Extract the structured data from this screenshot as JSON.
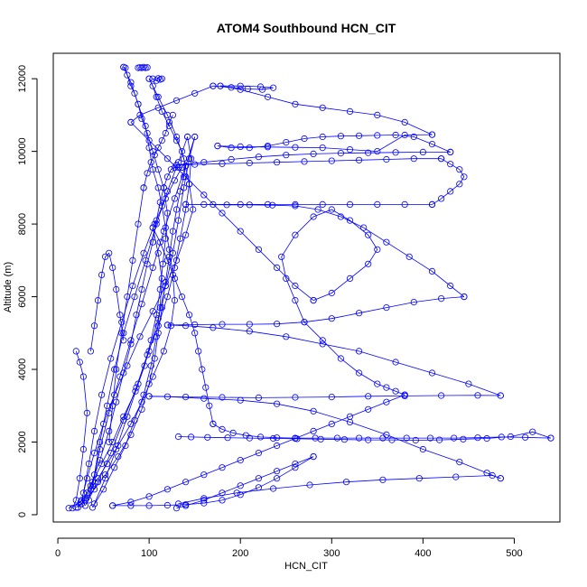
{
  "chart_data": {
    "type": "scatter",
    "title": "ATOM4 Southbound HCN_CIT",
    "xlabel": "HCN_CIT",
    "ylabel": "Altitude (m)",
    "xlim": [
      -5,
      550
    ],
    "ylim": [
      -200,
      12700
    ],
    "x_ticks": [
      0,
      100,
      200,
      300,
      400,
      500
    ],
    "y_ticks": [
      0,
      2000,
      4000,
      6000,
      8000,
      10000,
      12000
    ],
    "grid": false,
    "legend": "none",
    "colors": {
      "series": "#0000ff",
      "axis": "#000000"
    },
    "series": [
      {
        "x": [
          12,
          25,
          32,
          38,
          48,
          60,
          72,
          85,
          95,
          102,
          108,
          112,
          115,
          118,
          120,
          116,
          110,
          104,
          98,
          92,
          88,
          84,
          80,
          76,
          74,
          72
        ],
        "y": [
          180,
          350,
          600,
          900,
          1400,
          2000,
          2700,
          3400,
          4100,
          4800,
          5500,
          6200,
          6900,
          7600,
          8300,
          9000,
          9500,
          10000,
          10500,
          10900,
          11300,
          11600,
          11800,
          12100,
          12300,
          12320
        ]
      },
      {
        "x": [
          72,
          80,
          88,
          96,
          100,
          104,
          110,
          114,
          118,
          122,
          126,
          128,
          124,
          116,
          104,
          92,
          80,
          66,
          54,
          44,
          36,
          30,
          26,
          22
        ],
        "y": [
          12320,
          11900,
          11300,
          10700,
          10100,
          9500,
          9000,
          8500,
          7900,
          7300,
          6600,
          5900,
          5200,
          4500,
          3800,
          3100,
          2500,
          1900,
          1400,
          1000,
          700,
          450,
          300,
          200
        ]
      },
      {
        "x": [
          20,
          30,
          40,
          52,
          66,
          80,
          92,
          100,
          106,
          110,
          114,
          118,
          122,
          126,
          130,
          134,
          138,
          140,
          136,
          130,
          122,
          114,
          108,
          104,
          100
        ],
        "y": [
          200,
          400,
          700,
          1100,
          1600,
          2200,
          2900,
          3600,
          4300,
          5000,
          5700,
          6400,
          7100,
          7800,
          8400,
          8900,
          9300,
          9600,
          10000,
          10300,
          10700,
          11100,
          11500,
          11800,
          12000
        ]
      },
      {
        "x": [
          100,
          110,
          120,
          130,
          138,
          144,
          148,
          140,
          130,
          118,
          104,
          90,
          76,
          62,
          50,
          40,
          32,
          26
        ],
        "y": [
          12000,
          11500,
          11000,
          10400,
          9800,
          9100,
          8400,
          7700,
          7000,
          6300,
          5600,
          4900,
          4100,
          3300,
          2500,
          1700,
          1000,
          400
        ]
      },
      {
        "x": [
          26,
          36,
          46,
          56,
          64,
          72,
          80,
          86,
          92,
          98,
          104,
          108,
          112,
          116,
          120,
          124,
          128,
          132,
          136
        ],
        "y": [
          300,
          800,
          1500,
          2300,
          3100,
          3900,
          4700,
          5500,
          6200,
          6900,
          7500,
          8100,
          8600,
          9000,
          9300,
          9500,
          9550,
          9560,
          9560
        ]
      },
      {
        "x": [
          136,
          128,
          118,
          106,
          94,
          82,
          70,
          58,
          48,
          40,
          34,
          28
        ],
        "y": [
          9560,
          9200,
          8700,
          8000,
          7200,
          6300,
          5300,
          4300,
          3300,
          2300,
          1400,
          600
        ]
      },
      {
        "x": [
          30,
          44,
          58,
          72,
          86,
          98,
          110,
          120,
          128,
          134,
          140,
          144,
          146,
          142
        ],
        "y": [
          250,
          900,
          1700,
          2600,
          3500,
          4400,
          5200,
          6000,
          6800,
          7600,
          8400,
          9100,
          9800,
          10400
        ]
      },
      {
        "x": [
          142,
          132,
          120,
          108,
          96,
          84,
          72,
          62,
          54,
          46,
          40,
          34
        ],
        "y": [
          10400,
          9700,
          8900,
          8000,
          7000,
          6000,
          5000,
          4000,
          3000,
          2000,
          1100,
          400
        ]
      },
      {
        "x": [
          40,
          52,
          64,
          76,
          88,
          100,
          110,
          118,
          126,
          132,
          138,
          144,
          150
        ],
        "y": [
          300,
          1000,
          1800,
          2700,
          3600,
          4500,
          5400,
          6300,
          7200,
          8100,
          9000,
          9800,
          10400
        ]
      },
      {
        "x": [
          150,
          140,
          128,
          116,
          104,
          92,
          80,
          68,
          56,
          46,
          38
        ],
        "y": [
          10400,
          9600,
          8700,
          7800,
          6800,
          5800,
          4800,
          3800,
          2800,
          1800,
          800
        ]
      },
      {
        "x": [
          38,
          50,
          62,
          74,
          84,
          94,
          102,
          108,
          112,
          114,
          110,
          104
        ],
        "y": [
          200,
          700,
          1300,
          1900,
          2600,
          3300,
          4100,
          4900,
          5700,
          6500,
          7200,
          7900
        ]
      },
      {
        "x": [
          104,
          112,
          120,
          128,
          136,
          144,
          150,
          154,
          158,
          162,
          166,
          170
        ],
        "y": [
          7900,
          7500,
          7000,
          6500,
          6000,
          5500,
          5000,
          4500,
          4000,
          3500,
          3000,
          2500
        ]
      },
      {
        "x": [
          170,
          180,
          192,
          206,
          222,
          240,
          260,
          282,
          306,
          330,
          356,
          382,
          408,
          434,
          460,
          486,
          512,
          540
        ],
        "y": [
          2500,
          2350,
          2250,
          2180,
          2140,
          2120,
          2110,
          2110,
          2110,
          2110,
          2110,
          2110,
          2110,
          2110,
          2120,
          2140,
          2130,
          2110
        ]
      },
      {
        "x": [
          540,
          520,
          496,
          470,
          444,
          418,
          392,
          366,
          340,
          314,
          288,
          262,
          236,
          210,
          186,
          164,
          146,
          132
        ],
        "y": [
          2110,
          2280,
          2150,
          2100,
          2080,
          2060,
          2050,
          2060,
          2060,
          2070,
          2080,
          2090,
          2100,
          2110,
          2120,
          2130,
          2140,
          2150
        ]
      },
      {
        "x": [
          132,
          160,
          196,
          236,
          276,
          316,
          356,
          396,
          436,
          476,
          485
        ],
        "y": [
          300,
          450,
          600,
          720,
          820,
          900,
          960,
          1000,
          1040,
          1080,
          1000
        ]
      },
      {
        "x": [
          485,
          470,
          440,
          400,
          360,
          320,
          280,
          240,
          200,
          160,
          120,
          100
        ],
        "y": [
          1000,
          1150,
          1450,
          1800,
          2200,
          2550,
          2850,
          3050,
          3150,
          3200,
          3250,
          3260
        ]
      },
      {
        "x": [
          100,
          140,
          180,
          220,
          260,
          300,
          340,
          380,
          420,
          460,
          485
        ],
        "y": [
          3260,
          3240,
          3230,
          3220,
          3230,
          3240,
          3260,
          3270,
          3280,
          3285,
          3280
        ]
      },
      {
        "x": [
          485,
          450,
          410,
          370,
          330,
          290,
          250,
          210,
          170,
          140,
          120
        ],
        "y": [
          3280,
          3600,
          3900,
          4200,
          4500,
          4700,
          4900,
          5050,
          5150,
          5200,
          5220
        ]
      },
      {
        "x": [
          120,
          150,
          180,
          210,
          240,
          270,
          300,
          330,
          360,
          390,
          420,
          445
        ],
        "y": [
          5220,
          5230,
          5240,
          5240,
          5250,
          5300,
          5400,
          5550,
          5700,
          5850,
          5950,
          6000
        ]
      },
      {
        "x": [
          445,
          430,
          410,
          385,
          360,
          335,
          310,
          285,
          260,
          235,
          210,
          185,
          160,
          140
        ],
        "y": [
          6000,
          6300,
          6700,
          7100,
          7500,
          7900,
          8200,
          8400,
          8500,
          8520,
          8530,
          8530,
          8540,
          8540
        ]
      },
      {
        "x": [
          140,
          170,
          200,
          230,
          260,
          290,
          320,
          350,
          380,
          410
        ],
        "y": [
          8540,
          8540,
          8540,
          8540,
          8540,
          8540,
          8540,
          8540,
          8540,
          8540
        ]
      },
      {
        "x": [
          410,
          420,
          430,
          440,
          445,
          440,
          430,
          420
        ],
        "y": [
          8540,
          8700,
          8900,
          9100,
          9300,
          9500,
          9650,
          9800
        ]
      },
      {
        "x": [
          420,
          390,
          360,
          330,
          300,
          270,
          240,
          210,
          180,
          150,
          130
        ],
        "y": [
          9800,
          9800,
          9780,
          9760,
          9740,
          9720,
          9700,
          9680,
          9660,
          9640,
          9620
        ]
      },
      {
        "x": [
          130,
          160,
          190,
          220,
          250,
          280,
          310,
          340,
          370,
          400,
          430
        ],
        "y": [
          9620,
          9700,
          9780,
          9850,
          9900,
          9930,
          9950,
          9960,
          9970,
          9980,
          9980
        ]
      },
      {
        "x": [
          430,
          410,
          390,
          370,
          350,
          330,
          310,
          290,
          270,
          250,
          230,
          210,
          190,
          175
        ],
        "y": [
          9980,
          10200,
          10400,
          10450,
          10440,
          10430,
          10420,
          10400,
          10350,
          10250,
          10150,
          10100,
          10100,
          10150
        ]
      },
      {
        "x": [
          175,
          200,
          230,
          260,
          290,
          320,
          350,
          380,
          410
        ],
        "y": [
          10150,
          10130,
          10120,
          10110,
          10100,
          10050,
          10000,
          10450,
          10460
        ]
      },
      {
        "x": [
          410,
          380,
          350,
          320,
          290,
          260,
          230,
          200,
          178
        ],
        "y": [
          10460,
          10800,
          11000,
          11100,
          11200,
          11300,
          11500,
          11700,
          11800
        ]
      },
      {
        "x": [
          178,
          200,
          222,
          236,
          224,
          208,
          190,
          170
        ],
        "y": [
          11800,
          11800,
          11780,
          11750,
          11700,
          11720,
          11760,
          11800
        ]
      },
      {
        "x": [
          170,
          150,
          130,
          110,
          90,
          80
        ],
        "y": [
          11800,
          11600,
          11400,
          11200,
          11000,
          10800
        ]
      },
      {
        "x": [
          80,
          100,
          120,
          140,
          160,
          180,
          200,
          220,
          240,
          260,
          280
        ],
        "y": [
          10800,
          10300,
          9800,
          9300,
          8800,
          8300,
          7800,
          7300,
          6800,
          6300,
          5900
        ]
      },
      {
        "x": [
          280,
          300,
          320,
          340,
          350,
          340,
          320,
          300,
          280,
          260,
          245,
          250,
          260,
          270,
          290,
          310,
          330,
          350,
          360,
          370,
          380
        ],
        "y": [
          5900,
          6100,
          6500,
          6900,
          7300,
          7700,
          8100,
          8400,
          8200,
          7700,
          7100,
          6500,
          5900,
          5300,
          4800,
          4300,
          3900,
          3600,
          3500,
          3400,
          3300
        ]
      },
      {
        "x": [
          380,
          360,
          340,
          320,
          300,
          280,
          260,
          240,
          220,
          200,
          180,
          160,
          140,
          120,
          100,
          80,
          60
        ],
        "y": [
          3300,
          3100,
          2900,
          2700,
          2500,
          2300,
          2100,
          1900,
          1700,
          1500,
          1300,
          1100,
          900,
          700,
          500,
          350,
          250
        ]
      },
      {
        "x": [
          60,
          80,
          100,
          120,
          140,
          160,
          180,
          200,
          220,
          240,
          260,
          280
        ],
        "y": [
          250,
          250,
          250,
          260,
          280,
          320,
          400,
          550,
          750,
          1000,
          1300,
          1600
        ]
      },
      {
        "x": [
          280,
          260,
          240,
          220,
          200,
          180,
          160,
          140,
          130
        ],
        "y": [
          1600,
          1400,
          1200,
          1000,
          800,
          600,
          400,
          250,
          180
        ]
      },
      {
        "x": [
          16,
          20,
          24,
          28,
          32,
          28,
          24,
          20
        ],
        "y": [
          180,
          400,
          1000,
          1800,
          2800,
          3800,
          4200,
          4500
        ]
      },
      {
        "x": [
          36,
          40,
          44,
          48,
          52,
          56,
          60,
          64,
          68,
          72
        ],
        "y": [
          4500,
          5200,
          5900,
          6600,
          7100,
          7200,
          6800,
          6200,
          5500,
          4800
        ]
      },
      {
        "x": [
          56,
          60,
          64,
          70,
          76,
          82,
          88,
          94
        ],
        "y": [
          2000,
          3000,
          4000,
          5000,
          6000,
          7000,
          8000,
          9000
        ]
      },
      {
        "x": [
          94,
          98,
          102,
          106,
          110,
          114,
          118,
          122,
          126
        ],
        "y": [
          9000,
          9400,
          9700,
          9900,
          10100,
          10300,
          10500,
          10800,
          11000
        ]
      },
      {
        "x": [
          88,
          90,
          92,
          94,
          96,
          98
        ],
        "y": [
          12300,
          12310,
          12300,
          12320,
          12300,
          12310
        ]
      },
      {
        "x": [
          104,
          108,
          110,
          112,
          114
        ],
        "y": [
          12000,
          11950,
          12010,
          11980,
          12000
        ]
      }
    ]
  }
}
